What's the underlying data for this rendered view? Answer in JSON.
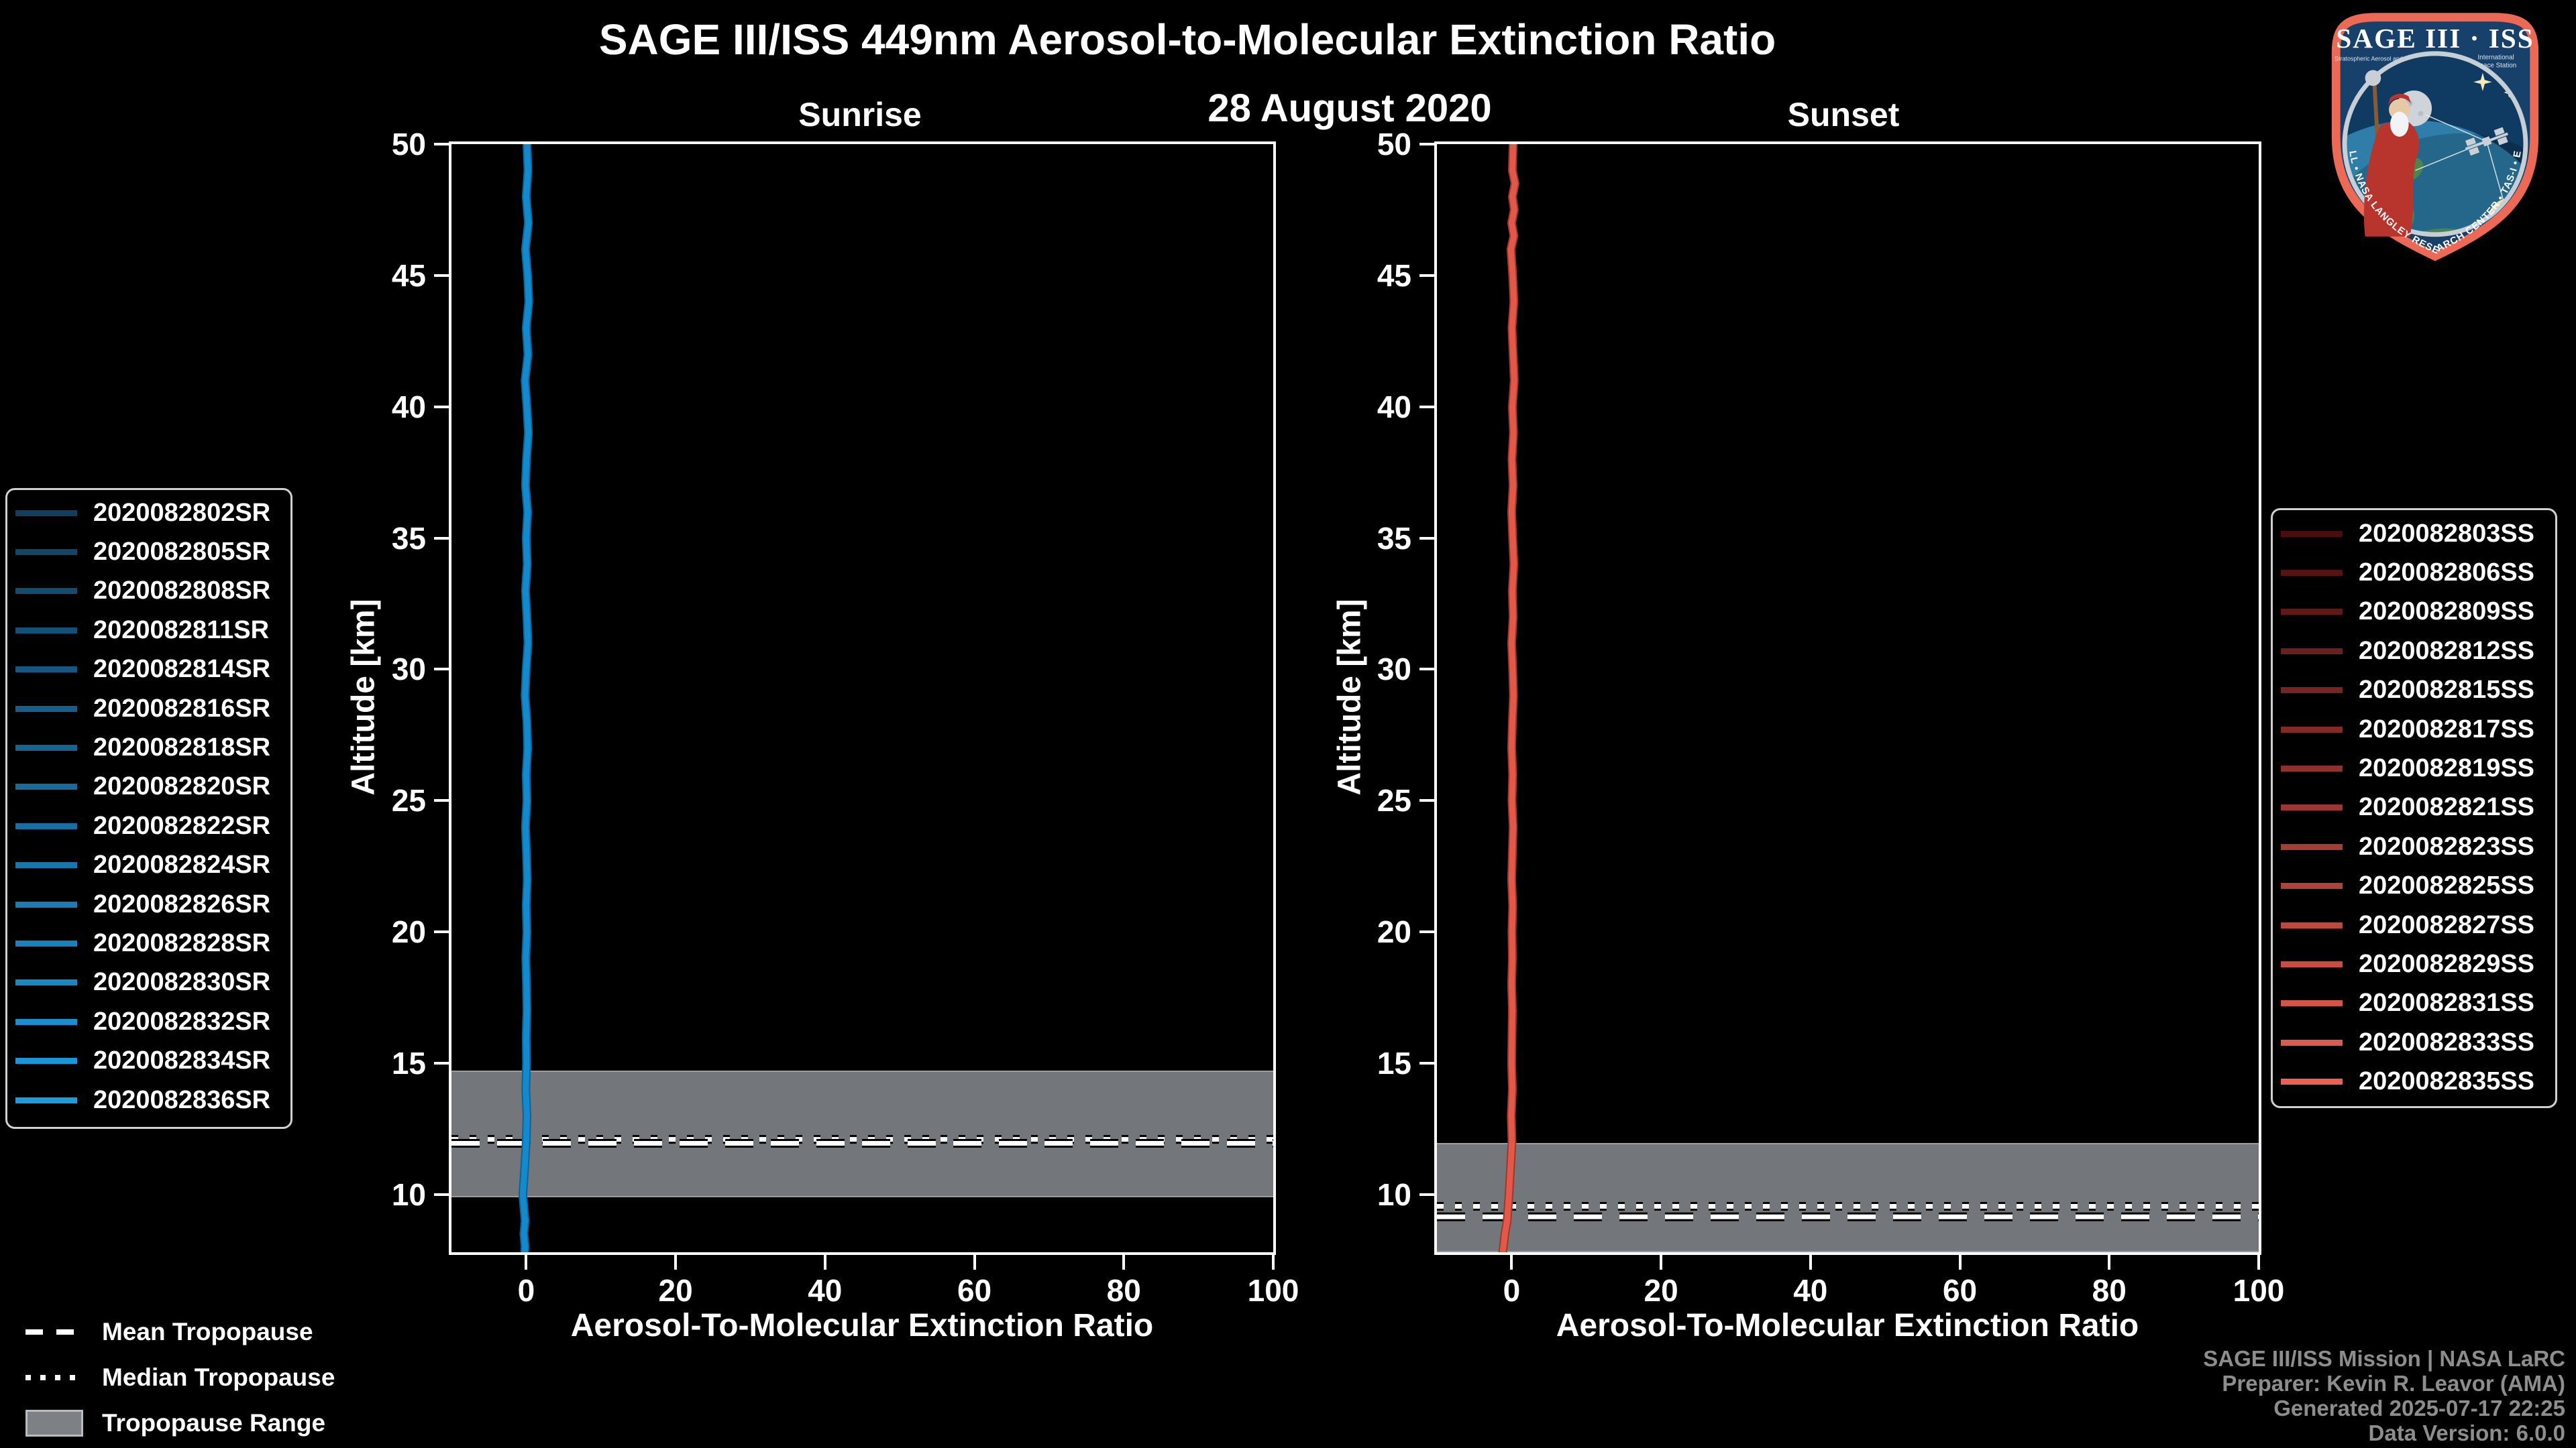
{
  "figure": {
    "title": "SAGE III/ISS 449nm Aerosol-to-Molecular Extinction Ratio",
    "date": "28 August 2020",
    "background_color": "#000000",
    "text_color": "#ffffff"
  },
  "chart_data": [
    {
      "type": "line",
      "title": "Sunrise",
      "xlabel": "Aerosol-To-Molecular Extinction Ratio",
      "ylabel": "Altitude [km]",
      "xlim": [
        -10,
        100
      ],
      "ylim": [
        7.8,
        50
      ],
      "x_ticks": [
        0,
        20,
        40,
        60,
        80,
        100
      ],
      "y_ticks": [
        50,
        45,
        40,
        35,
        30,
        25,
        20,
        15,
        10
      ],
      "grid": false,
      "legend_position": "outside-left",
      "profile_color": "#1489CB",
      "profile_edge_color": "#0C639A",
      "profile_note": "16 overlapping sunrise event profiles, extinction ratio ~0 at all altitudes",
      "tropopause": {
        "mean_km": 11.95,
        "median_km": 12.1,
        "range_km": [
          9.9,
          14.73
        ],
        "band_color": "#73767B"
      },
      "profile": [
        [
          50,
          0.1
        ],
        [
          49,
          0.25
        ],
        [
          48,
          0
        ],
        [
          47,
          0.3
        ],
        [
          46,
          -0.1
        ],
        [
          45,
          0.2
        ],
        [
          44,
          0.35
        ],
        [
          43,
          0
        ],
        [
          42,
          0.25
        ],
        [
          41,
          -0.15
        ],
        [
          40,
          0.1
        ],
        [
          39,
          0.3
        ],
        [
          38,
          0.05
        ],
        [
          37,
          -0.1
        ],
        [
          36,
          0.2
        ],
        [
          35,
          0
        ],
        [
          34,
          0.15
        ],
        [
          33,
          -0.1
        ],
        [
          32,
          0.1
        ],
        [
          31,
          0.25
        ],
        [
          30,
          0
        ],
        [
          29,
          -0.15
        ],
        [
          28,
          0.1
        ],
        [
          27,
          0.2
        ],
        [
          26,
          0
        ],
        [
          25,
          0.1
        ],
        [
          24,
          -0.1
        ],
        [
          23,
          0.05
        ],
        [
          22,
          0.15
        ],
        [
          21,
          0
        ],
        [
          20,
          0.1
        ],
        [
          19,
          -0.05
        ],
        [
          18,
          0.05
        ],
        [
          17,
          0.1
        ],
        [
          16,
          0
        ],
        [
          15,
          0.05
        ],
        [
          14,
          -0.05
        ],
        [
          13,
          0.1
        ],
        [
          12,
          0
        ],
        [
          11,
          -0.2
        ],
        [
          10,
          -0.45
        ],
        [
          9.5,
          -0.3
        ],
        [
          9,
          -0.15
        ],
        [
          8.5,
          -0.3
        ],
        [
          8,
          -0.15
        ],
        [
          7.8,
          -0.2
        ]
      ]
    },
    {
      "type": "line",
      "title": "Sunset",
      "xlabel": "Aerosol-To-Molecular Extinction Ratio",
      "ylabel": "Altitude [km]",
      "xlim": [
        -10,
        100
      ],
      "ylim": [
        7.8,
        50
      ],
      "x_ticks": [
        0,
        20,
        40,
        60,
        80,
        100
      ],
      "y_ticks": [
        50,
        45,
        40,
        35,
        30,
        25,
        20,
        15,
        10
      ],
      "grid": false,
      "legend_position": "outside-right",
      "profile_color": "#E2594A",
      "profile_edge_color": "#9E372C",
      "profile_note": "15 overlapping sunset event profiles, extinction ratio ~0 at all altitudes",
      "tropopause": {
        "mean_km": 9.15,
        "median_km": 9.55,
        "range_km": [
          7.8,
          11.95
        ],
        "band_color": "#73767B"
      },
      "profile": [
        [
          50,
          0.2
        ],
        [
          49,
          0.1
        ],
        [
          48.5,
          0.45
        ],
        [
          48,
          0.1
        ],
        [
          47.5,
          0.35
        ],
        [
          47,
          0
        ],
        [
          46.5,
          0.3
        ],
        [
          46,
          -0.1
        ],
        [
          45,
          0.15
        ],
        [
          44,
          0.3
        ],
        [
          43,
          0.05
        ],
        [
          42,
          0.2
        ],
        [
          41,
          0.35
        ],
        [
          40,
          0.1
        ],
        [
          39,
          0.25
        ],
        [
          38,
          0.05
        ],
        [
          37,
          0.2
        ],
        [
          36,
          0
        ],
        [
          35,
          0.15
        ],
        [
          34,
          0.3
        ],
        [
          33,
          0.1
        ],
        [
          32,
          0.2
        ],
        [
          31,
          0
        ],
        [
          30,
          0.15
        ],
        [
          29,
          0.25
        ],
        [
          28,
          0.1
        ],
        [
          27,
          0
        ],
        [
          26,
          0.15
        ],
        [
          25,
          0.05
        ],
        [
          24,
          0.2
        ],
        [
          23,
          0.1
        ],
        [
          22,
          0
        ],
        [
          21,
          0.15
        ],
        [
          20,
          0.05
        ],
        [
          19,
          0.1
        ],
        [
          18,
          0
        ],
        [
          17,
          0.1
        ],
        [
          16,
          0.05
        ],
        [
          15,
          0
        ],
        [
          14,
          0.1
        ],
        [
          13,
          -0.05
        ],
        [
          12,
          0.05
        ],
        [
          11,
          -0.15
        ],
        [
          10,
          -0.35
        ],
        [
          9,
          -0.6
        ],
        [
          8.5,
          -0.9
        ],
        [
          8,
          -1.1
        ],
        [
          7.8,
          -1.2
        ]
      ]
    }
  ],
  "legend_sunrise": {
    "entries": [
      {
        "label": "2020082802SR",
        "color": "#11405E"
      },
      {
        "label": "2020082805SR",
        "color": "#124667"
      },
      {
        "label": "2020082808SR",
        "color": "#124C6F"
      },
      {
        "label": "2020082811SR",
        "color": "#135278"
      },
      {
        "label": "2020082814SR",
        "color": "#145881"
      },
      {
        "label": "2020082816SR",
        "color": "#145E89"
      },
      {
        "label": "2020082818SR",
        "color": "#156492"
      },
      {
        "label": "2020082820SR",
        "color": "#166B9B"
      },
      {
        "label": "2020082822SR",
        "color": "#1671A3"
      },
      {
        "label": "2020082824SR",
        "color": "#1777AC"
      },
      {
        "label": "2020082826SR",
        "color": "#187DB5"
      },
      {
        "label": "2020082828SR",
        "color": "#1883BD"
      },
      {
        "label": "2020082830SR",
        "color": "#1989C6"
      },
      {
        "label": "2020082832SR",
        "color": "#1A8FCF"
      },
      {
        "label": "2020082834SR",
        "color": "#1A95D7"
      },
      {
        "label": "2020082836SR",
        "color": "#1B9BE0"
      }
    ]
  },
  "legend_sunset": {
    "entries": [
      {
        "label": "2020082803SS",
        "color": "#4A0D0D"
      },
      {
        "label": "2020082806SS",
        "color": "#551312"
      },
      {
        "label": "2020082809SS",
        "color": "#611917"
      },
      {
        "label": "2020082812SS",
        "color": "#6C1F1C"
      },
      {
        "label": "2020082815SS",
        "color": "#772521"
      },
      {
        "label": "2020082817SS",
        "color": "#822B26"
      },
      {
        "label": "2020082819SS",
        "color": "#8E312B"
      },
      {
        "label": "2020082821SS",
        "color": "#993730"
      },
      {
        "label": "2020082823SS",
        "color": "#A43D34"
      },
      {
        "label": "2020082825SS",
        "color": "#B04339"
      },
      {
        "label": "2020082827SS",
        "color": "#BB493E"
      },
      {
        "label": "2020082829SS",
        "color": "#C64F43"
      },
      {
        "label": "2020082831SS",
        "color": "#D15548"
      },
      {
        "label": "2020082833SS",
        "color": "#DD5B4D"
      },
      {
        "label": "2020082835SS",
        "color": "#E86152"
      }
    ]
  },
  "tropopause_legend": {
    "mean_label": "Mean Tropopause",
    "median_label": "Median Tropopause",
    "range_label": "Tropopause Range",
    "range_color": "#7d8085"
  },
  "attribution": {
    "lines": [
      "SAGE III/ISS Mission | NASA LaRC",
      "Preparer: Kevin R. Leavor (AMA)",
      "Generated 2025-07-17 22:25",
      "Data Version: 6.0.0"
    ]
  },
  "logo": {
    "title": "SAGE III · ISS",
    "subtitle_left": "Stratospheric Aerosol and Gas Experiment III",
    "subtitle_right_1": "International",
    "subtitle_right_2": "Space Station",
    "ring_text": "BALL • NASA LANGLEY RESEARCH CENTER • TAS-I • ESA",
    "border_color": "#EC6A55",
    "shield_color": "#17406A"
  }
}
